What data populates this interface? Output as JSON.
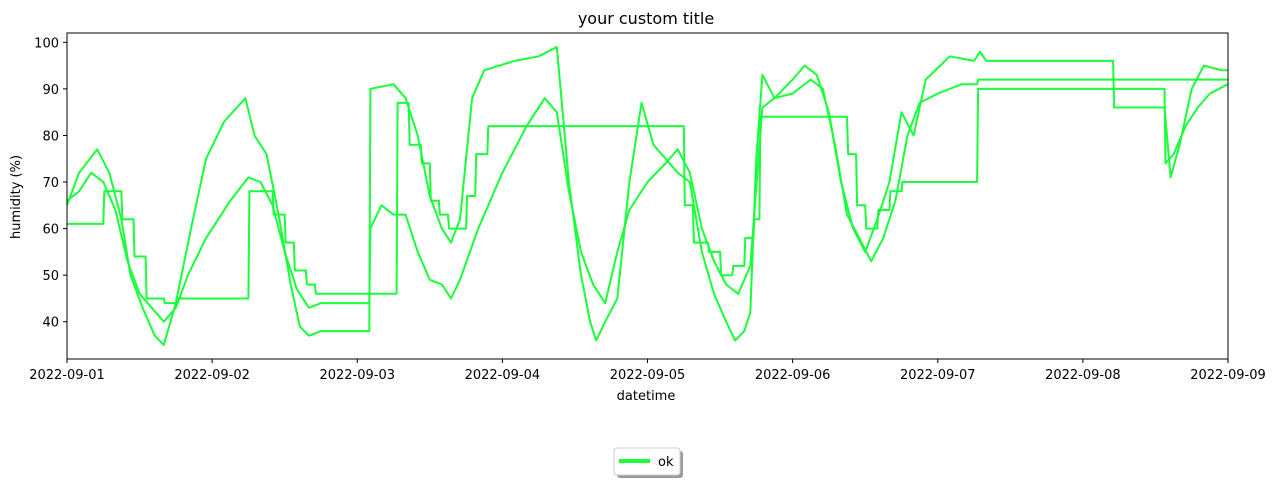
{
  "chart_data": {
    "type": "line",
    "title": "your custom title",
    "xlabel": "datetime",
    "ylabel": "humidity (%)",
    "xlim": [
      "2022-09-01",
      "2022-09-09"
    ],
    "ylim": [
      32,
      102
    ],
    "x_tick_labels": [
      "2022-09-01",
      "2022-09-02",
      "2022-09-03",
      "2022-09-04",
      "2022-09-05",
      "2022-09-06",
      "2022-09-07",
      "2022-09-08",
      "2022-09-09"
    ],
    "y_ticks": [
      40,
      50,
      60,
      70,
      80,
      90,
      100
    ],
    "grid": false,
    "legend": {
      "placement": "bottom-center",
      "entries": [
        "ok"
      ]
    },
    "line_color": "#19ff3a",
    "series": [
      {
        "name": "ok",
        "points": [
          [
            "2022-09-01 00:00",
            65
          ],
          [
            "2022-09-01 02:00",
            72
          ],
          [
            "2022-09-01 05:00",
            77
          ],
          [
            "2022-09-01 07:00",
            72
          ],
          [
            "2022-09-01 09:00",
            62
          ],
          [
            "2022-09-01 10:30",
            50
          ],
          [
            "2022-09-01 12:30",
            43
          ],
          [
            "2022-09-01 14:30",
            37
          ],
          [
            "2022-09-01 16:00",
            35
          ],
          [
            "2022-09-01 18:00",
            44
          ],
          [
            "2022-09-01 20:30",
            60
          ],
          [
            "2022-09-01 23:00",
            75
          ],
          [
            "2022-09-02 02:00",
            83
          ],
          [
            "2022-09-02 05:30",
            88
          ],
          [
            "2022-09-02 07:00",
            80
          ],
          [
            "2022-09-02 09:00",
            76
          ],
          [
            "2022-09-02 11:00",
            63
          ],
          [
            "2022-09-02 13:00",
            48
          ],
          [
            "2022-09-02 14:30",
            39
          ],
          [
            "2022-09-02 16:00",
            37
          ],
          [
            "2022-09-02 18:00",
            38
          ],
          [
            "2022-09-03 02:00",
            38
          ],
          [
            "2022-09-03 02:10",
            90
          ],
          [
            "2022-09-03 06:00",
            91
          ],
          [
            "2022-09-03 08:00",
            88
          ],
          [
            "2022-09-03 10:00",
            80
          ],
          [
            "2022-09-03 12:00",
            67
          ],
          [
            "2022-09-03 14:00",
            60
          ],
          [
            "2022-09-03 15:30",
            57
          ],
          [
            "2022-09-03 17:00",
            62
          ],
          [
            "2022-09-03 19:00",
            88
          ],
          [
            "2022-09-03 21:00",
            94
          ],
          [
            "2022-09-04 02:00",
            96
          ],
          [
            "2022-09-04 06:00",
            97
          ],
          [
            "2022-09-04 09:00",
            99
          ],
          [
            "2022-09-04 11:00",
            70
          ],
          [
            "2022-09-04 13:00",
            50
          ],
          [
            "2022-09-04 14:30",
            40
          ],
          [
            "2022-09-04 15:30",
            36
          ],
          [
            "2022-09-04 17:00",
            40
          ],
          [
            "2022-09-04 19:00",
            45
          ],
          [
            "2022-09-04 21:00",
            70
          ],
          [
            "2022-09-04 23:00",
            87
          ],
          [
            "2022-09-05 01:00",
            78
          ],
          [
            "2022-09-05 03:00",
            75
          ],
          [
            "2022-09-05 05:00",
            72
          ],
          [
            "2022-09-05 07:00",
            70
          ],
          [
            "2022-09-05 09:00",
            55
          ],
          [
            "2022-09-05 11:00",
            46
          ],
          [
            "2022-09-05 13:00",
            40
          ],
          [
            "2022-09-05 14:30",
            36
          ],
          [
            "2022-09-05 16:00",
            38
          ],
          [
            "2022-09-05 17:00",
            42
          ],
          [
            "2022-09-05 18:00",
            75
          ],
          [
            "2022-09-05 19:00",
            93
          ],
          [
            "2022-09-05 21:00",
            88
          ],
          [
            "2022-09-06 00:00",
            92
          ],
          [
            "2022-09-06 02:00",
            95
          ],
          [
            "2022-09-06 04:00",
            93
          ],
          [
            "2022-09-06 06:00",
            85
          ],
          [
            "2022-09-06 08:00",
            70
          ],
          [
            "2022-09-06 10:00",
            60
          ],
          [
            "2022-09-06 12:00",
            55
          ],
          [
            "2022-09-06 14:00",
            62
          ],
          [
            "2022-09-06 16:00",
            70
          ],
          [
            "2022-09-06 18:00",
            85
          ],
          [
            "2022-09-06 20:00",
            80
          ],
          [
            "2022-09-06 22:00",
            92
          ],
          [
            "2022-09-07 02:00",
            97
          ],
          [
            "2022-09-07 06:00",
            96
          ],
          [
            "2022-09-07 07:00",
            98
          ],
          [
            "2022-09-07 08:00",
            96
          ],
          [
            "2022-09-08 05:00",
            96
          ],
          [
            "2022-09-08 05:10",
            86
          ],
          [
            "2022-09-08 13:30",
            86
          ],
          [
            "2022-09-08 14:30",
            71
          ],
          [
            "2022-09-08 16:00",
            78
          ],
          [
            "2022-09-08 18:00",
            90
          ],
          [
            "2022-09-08 20:00",
            95
          ],
          [
            "2022-09-08 23:00",
            94
          ],
          [
            "2022-09-09 00:00",
            94
          ]
        ]
      },
      {
        "name": "ok",
        "points": [
          [
            "2022-09-01 00:00",
            66
          ],
          [
            "2022-09-01 02:00",
            68
          ],
          [
            "2022-09-01 04:00",
            72
          ],
          [
            "2022-09-01 06:00",
            70
          ],
          [
            "2022-09-01 08:00",
            64
          ],
          [
            "2022-09-01 10:00",
            53
          ],
          [
            "2022-09-01 12:00",
            46
          ],
          [
            "2022-09-01 14:00",
            43
          ],
          [
            "2022-09-01 16:00",
            40
          ],
          [
            "2022-09-01 18:00",
            43
          ],
          [
            "2022-09-01 20:00",
            50
          ],
          [
            "2022-09-01 23:00",
            58
          ],
          [
            "2022-09-02 03:00",
            66
          ],
          [
            "2022-09-02 06:00",
            71
          ],
          [
            "2022-09-02 08:00",
            70
          ],
          [
            "2022-09-02 10:00",
            65
          ],
          [
            "2022-09-02 12:00",
            55
          ],
          [
            "2022-09-02 14:00",
            47
          ],
          [
            "2022-09-02 16:00",
            43
          ],
          [
            "2022-09-02 18:00",
            44
          ],
          [
            "2022-09-03 02:00",
            44
          ],
          [
            "2022-09-03 02:10",
            60
          ],
          [
            "2022-09-03 04:00",
            65
          ],
          [
            "2022-09-03 06:00",
            63
          ],
          [
            "2022-09-03 08:00",
            63
          ],
          [
            "2022-09-03 10:00",
            55
          ],
          [
            "2022-09-03 12:00",
            49
          ],
          [
            "2022-09-03 14:00",
            48
          ],
          [
            "2022-09-03 15:30",
            45
          ],
          [
            "2022-09-03 17:00",
            49
          ],
          [
            "2022-09-03 20:00",
            60
          ],
          [
            "2022-09-04 00:00",
            72
          ],
          [
            "2022-09-04 04:00",
            82
          ],
          [
            "2022-09-04 07:00",
            88
          ],
          [
            "2022-09-04 09:00",
            85
          ],
          [
            "2022-09-04 11:00",
            68
          ],
          [
            "2022-09-04 13:00",
            55
          ],
          [
            "2022-09-04 15:00",
            48
          ],
          [
            "2022-09-04 17:00",
            44
          ],
          [
            "2022-09-04 19:00",
            55
          ],
          [
            "2022-09-04 21:00",
            64
          ],
          [
            "2022-09-05 00:00",
            70
          ],
          [
            "2022-09-05 03:00",
            74
          ],
          [
            "2022-09-05 05:00",
            77
          ],
          [
            "2022-09-05 07:00",
            72
          ],
          [
            "2022-09-05 09:00",
            60
          ],
          [
            "2022-09-05 11:00",
            53
          ],
          [
            "2022-09-05 13:00",
            48
          ],
          [
            "2022-09-05 15:00",
            46
          ],
          [
            "2022-09-05 17:00",
            52
          ],
          [
            "2022-09-05 19:00",
            86
          ],
          [
            "2022-09-05 21:00",
            88
          ],
          [
            "2022-09-06 00:00",
            89
          ],
          [
            "2022-09-06 03:00",
            92
          ],
          [
            "2022-09-06 05:00",
            90
          ],
          [
            "2022-09-06 07:00",
            78
          ],
          [
            "2022-09-06 09:00",
            63
          ],
          [
            "2022-09-06 11:00",
            58
          ],
          [
            "2022-09-06 13:00",
            53
          ],
          [
            "2022-09-06 15:00",
            58
          ],
          [
            "2022-09-06 17:00",
            66
          ],
          [
            "2022-09-06 19:00",
            80
          ],
          [
            "2022-09-06 21:00",
            87
          ],
          [
            "2022-09-07 00:00",
            89
          ],
          [
            "2022-09-07 04:00",
            91
          ],
          [
            "2022-09-07 06:30",
            91
          ],
          [
            "2022-09-07 06:40",
            92
          ],
          [
            "2022-09-08 05:00",
            92
          ],
          [
            "2022-09-09 00:00",
            92
          ]
        ]
      },
      {
        "name": "ok",
        "points": [
          [
            "2022-09-01 00:00",
            61
          ],
          [
            "2022-09-01 06:00",
            61
          ],
          [
            "2022-09-01 06:10",
            68
          ],
          [
            "2022-09-01 09:00",
            68
          ],
          [
            "2022-09-01 09:10",
            62
          ],
          [
            "2022-09-01 11:00",
            62
          ],
          [
            "2022-09-01 11:10",
            54
          ],
          [
            "2022-09-01 13:00",
            54
          ],
          [
            "2022-09-01 13:10",
            45
          ],
          [
            "2022-09-01 16:00",
            45
          ],
          [
            "2022-09-01 16:10",
            44
          ],
          [
            "2022-09-01 18:00",
            44
          ],
          [
            "2022-09-01 18:10",
            45
          ],
          [
            "2022-09-02 06:00",
            45
          ],
          [
            "2022-09-02 06:10",
            68
          ],
          [
            "2022-09-02 10:00",
            68
          ],
          [
            "2022-09-02 10:10",
            63
          ],
          [
            "2022-09-02 12:00",
            63
          ],
          [
            "2022-09-02 12:10",
            57
          ],
          [
            "2022-09-02 13:30",
            57
          ],
          [
            "2022-09-02 13:40",
            51
          ],
          [
            "2022-09-02 15:30",
            51
          ],
          [
            "2022-09-02 15:40",
            48
          ],
          [
            "2022-09-02 17:00",
            48
          ],
          [
            "2022-09-02 17:10",
            46
          ],
          [
            "2022-09-03 06:30",
            46
          ],
          [
            "2022-09-03 06:40",
            87
          ],
          [
            "2022-09-03 08:30",
            87
          ],
          [
            "2022-09-03 08:40",
            78
          ],
          [
            "2022-09-03 10:30",
            78
          ],
          [
            "2022-09-03 10:40",
            74
          ],
          [
            "2022-09-03 12:00",
            74
          ],
          [
            "2022-09-03 12:10",
            66
          ],
          [
            "2022-09-03 13:30",
            66
          ],
          [
            "2022-09-03 13:40",
            63
          ],
          [
            "2022-09-03 15:00",
            63
          ],
          [
            "2022-09-03 15:10",
            60
          ],
          [
            "2022-09-03 18:00",
            60
          ],
          [
            "2022-09-03 18:10",
            67
          ],
          [
            "2022-09-03 19:30",
            67
          ],
          [
            "2022-09-03 19:40",
            76
          ],
          [
            "2022-09-03 21:30",
            76
          ],
          [
            "2022-09-03 21:40",
            82
          ],
          [
            "2022-09-05 06:00",
            82
          ],
          [
            "2022-09-05 06:10",
            65
          ],
          [
            "2022-09-05 07:30",
            65
          ],
          [
            "2022-09-05 07:40",
            57
          ],
          [
            "2022-09-05 10:00",
            57
          ],
          [
            "2022-09-05 10:10",
            55
          ],
          [
            "2022-09-05 12:00",
            55
          ],
          [
            "2022-09-05 12:10",
            50
          ],
          [
            "2022-09-05 14:00",
            50
          ],
          [
            "2022-09-05 14:10",
            52
          ],
          [
            "2022-09-05 16:00",
            52
          ],
          [
            "2022-09-05 16:10",
            58
          ],
          [
            "2022-09-05 17:30",
            58
          ],
          [
            "2022-09-05 17:40",
            62
          ],
          [
            "2022-09-05 18:30",
            62
          ],
          [
            "2022-09-05 18:40",
            84
          ],
          [
            "2022-09-06 09:00",
            84
          ],
          [
            "2022-09-06 09:10",
            76
          ],
          [
            "2022-09-06 10:30",
            76
          ],
          [
            "2022-09-06 10:40",
            65
          ],
          [
            "2022-09-06 12:00",
            65
          ],
          [
            "2022-09-06 12:10",
            60
          ],
          [
            "2022-09-06 14:00",
            60
          ],
          [
            "2022-09-06 14:10",
            64
          ],
          [
            "2022-09-06 16:00",
            64
          ],
          [
            "2022-09-06 16:10",
            68
          ],
          [
            "2022-09-06 18:00",
            68
          ],
          [
            "2022-09-06 18:10",
            70
          ],
          [
            "2022-09-07 06:30",
            70
          ],
          [
            "2022-09-07 06:40",
            90
          ],
          [
            "2022-09-08 13:30",
            90
          ],
          [
            "2022-09-08 13:40",
            74
          ],
          [
            "2022-09-08 15:00",
            76
          ],
          [
            "2022-09-08 17:00",
            82
          ],
          [
            "2022-09-08 19:00",
            86
          ],
          [
            "2022-09-08 21:00",
            89
          ],
          [
            "2022-09-09 00:00",
            91
          ]
        ]
      }
    ]
  }
}
